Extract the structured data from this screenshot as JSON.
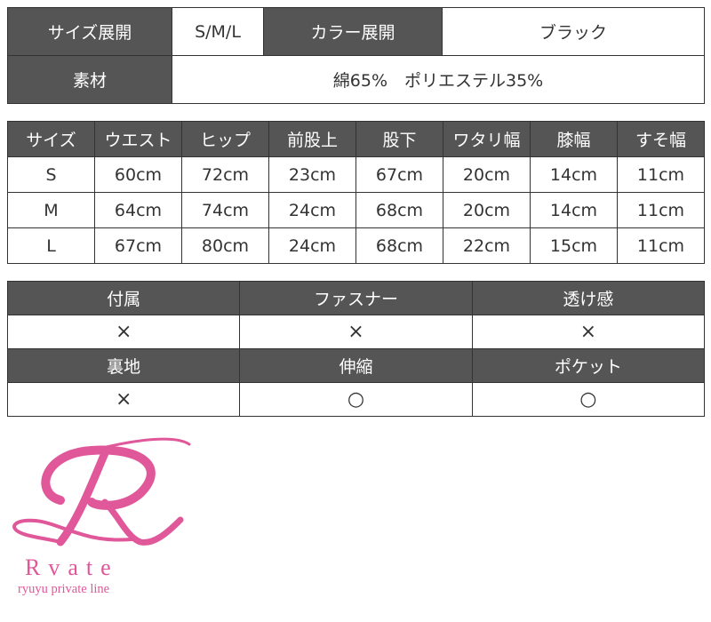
{
  "spec": {
    "size_label": "サイズ展開",
    "size_value": "S/M/L",
    "color_label": "カラー展開",
    "color_value": "ブラック",
    "material_label": "素材",
    "material_value": "綿65%　ポリエステル35%"
  },
  "measurements": {
    "headers": [
      "サイズ",
      "ウエスト",
      "ヒップ",
      "前股上",
      "股下",
      "ワタリ幅",
      "膝幅",
      "すそ幅"
    ],
    "rows": [
      [
        "S",
        "60cm",
        "72cm",
        "23cm",
        "67cm",
        "20cm",
        "14cm",
        "11cm"
      ],
      [
        "M",
        "64cm",
        "74cm",
        "24cm",
        "68cm",
        "20cm",
        "14cm",
        "11cm"
      ],
      [
        "L",
        "67cm",
        "80cm",
        "24cm",
        "68cm",
        "22cm",
        "15cm",
        "11cm"
      ]
    ]
  },
  "features": {
    "row1_headers": [
      "付属",
      "ファスナー",
      "透け感"
    ],
    "row1_values": [
      "×",
      "×",
      "×"
    ],
    "row2_headers": [
      "裏地",
      "伸縮",
      "ポケット"
    ],
    "row2_values": [
      "×",
      "○",
      "○"
    ]
  },
  "logo": {
    "brand": "Rvate",
    "tagline": "ryuyu private line",
    "color": "#e0579a"
  }
}
